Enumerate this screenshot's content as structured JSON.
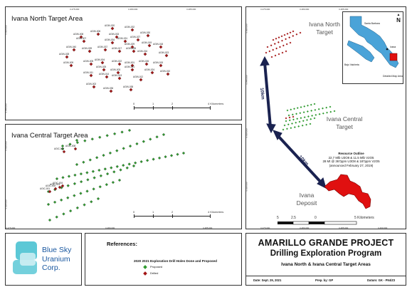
{
  "north_panel": {
    "title": "Ivana North Target Area",
    "ticks_top": [
      "3.475.000",
      "3.480.000",
      "3.485.000"
    ],
    "ticks_left": [
      "5.650.000",
      "5.648.000"
    ],
    "holes": [
      "AGIN-020",
      "AGIN-032",
      "AGIN-008",
      "AGIN-006",
      "AGIN-033",
      "AGIN-030",
      "AGIN-007",
      "AGIN-034",
      "AGIN-031",
      "AGIN-027",
      "AGIN-019",
      "AGIN-029",
      "AGIN-018",
      "AGIN-040",
      "AGIN-039",
      "AGIN-037",
      "AGIN-017",
      "AGIN-035",
      "AGIN-016",
      "AGIN-023",
      "AGIN-009",
      "AGIN-005",
      "AGIN-004",
      "AGIN-022",
      "AGIN-001",
      "AGIN-026",
      "AGIN-015",
      "AGIN-025",
      "AGIN-003",
      "AGIN-021",
      "AGIN-024",
      "AGIN-010",
      "AGIN-011",
      "AGIN-014",
      "AGIN-013",
      "AGIN-012",
      "AGIN-002",
      "AGIN-036",
      "AGIN-038",
      "AGIN-028"
    ],
    "scale_ticks": [
      "0",
      "1",
      "2",
      "4 Kilometers"
    ]
  },
  "central_panel": {
    "title": "Ivana Central Target Area",
    "ticks_bottom": [
      "3.475.000",
      "3.480.000",
      "3.485.000"
    ],
    "ticks_left": [
      "5.630.000",
      "5.628.000"
    ],
    "holes": [
      "AGIC-009",
      "AGIC-008",
      "AGIC-004",
      "AGIC-003",
      "AGIC-002",
      "AGIC-001"
    ],
    "scale_ticks": [
      "0",
      "1",
      "2",
      "4 Kilometers"
    ]
  },
  "overview_map": {
    "ticks_top": [
      "3.475.000",
      "3.480.000",
      "3.485.000",
      "3.490.000"
    ],
    "ticks_bottom": [
      "3.475.000",
      "3.480.000",
      "3.485.000",
      "3.490.000"
    ],
    "ticks_left": [
      "5.650.000",
      "5.640.000",
      "5.630.000",
      "5.620.000"
    ],
    "label_north": "Ivana North Target",
    "label_central": "Ivana Central Target",
    "label_deposit": "Ivana Deposit",
    "distance_1": "10km",
    "distance_2": "10km",
    "resource_lines": [
      "Resource Outline",
      "22.7 Mlb U3O8 & 11.5 Mlb V2O5",
      "28 Mt @ 367ppm U3O8 & 187ppm V2O5",
      "(announced February 27, 2019)"
    ],
    "scale_ticks": [
      "5",
      "2.5",
      "0",
      "5 Kilometers"
    ],
    "north_arrow": "N"
  },
  "inset_map": {
    "places": [
      "Santa Barbara",
      "Ivana",
      "Bajo Valcheta",
      "Detailed Map Area"
    ]
  },
  "title_block": {
    "company_line1": "Blue Sky",
    "company_line2": "Uranium",
    "company_line3": "Corp.",
    "references_heading": "References:",
    "legend_heading": "2020 2021 Exploration Drill Holes Done and Proposed",
    "legend_proposed": "Proposed",
    "legend_drilled": "Drilled",
    "project_title": "AMARILLO GRANDE PROJECT",
    "project_subtitle": "Drilling Exploration Program",
    "project_areas": "Ivana North & Ivana Central Target Areas",
    "date": "Date: Sept. 29, 2021",
    "prep": "Prep. by: GP",
    "datum": "Datum: GK - P94/Z3"
  },
  "colors": {
    "drilled": "#a31515",
    "proposed": "#2e9a2e",
    "deposit": "#e01010",
    "sky_logo": "#5cc8d6",
    "arrow": "#1a2250"
  }
}
